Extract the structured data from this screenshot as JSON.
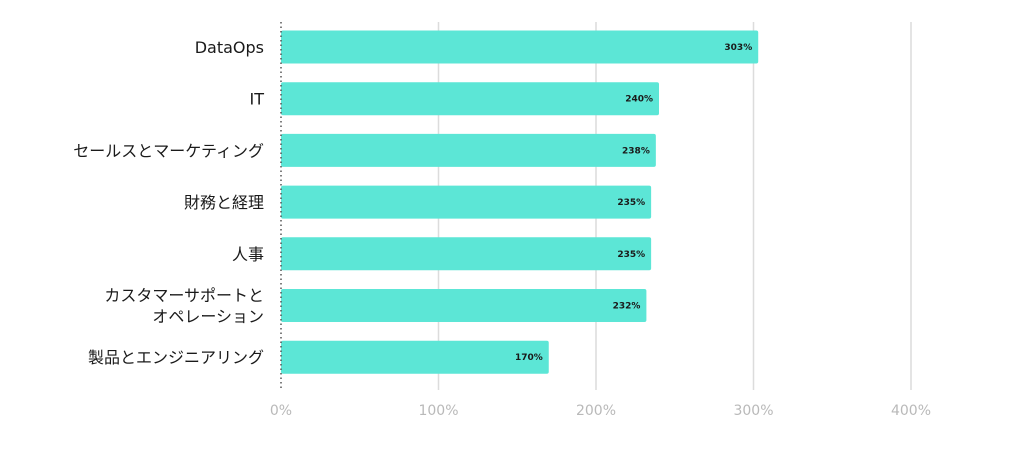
{
  "chart_data": {
    "type": "bar",
    "orientation": "horizontal",
    "categories": [
      [
        "DataOps"
      ],
      [
        "IT"
      ],
      [
        "セールスとマーケティング"
      ],
      [
        "財務と経理"
      ],
      [
        "人事"
      ],
      [
        "カスタマーサポートと",
        "オペレーション"
      ],
      [
        "製品とエンジニアリング"
      ]
    ],
    "values": [
      303,
      240,
      238,
      235,
      235,
      232,
      170
    ],
    "data_labels": [
      "303%",
      "240%",
      "238%",
      "235%",
      "235%",
      "232%",
      "170%"
    ],
    "xlim": [
      0,
      400
    ],
    "x_ticks": [
      0,
      100,
      200,
      300,
      400
    ],
    "x_tick_labels": [
      "0%",
      "100%",
      "200%",
      "300%",
      "400%"
    ],
    "title": "",
    "xlabel": "",
    "ylabel": "",
    "grid": "vertical",
    "colors": {
      "bar": "#5ce6d6",
      "grid": "#dcdcdc",
      "tick_text": "#b9b9b9",
      "label_text": "#1a1a1a"
    }
  }
}
